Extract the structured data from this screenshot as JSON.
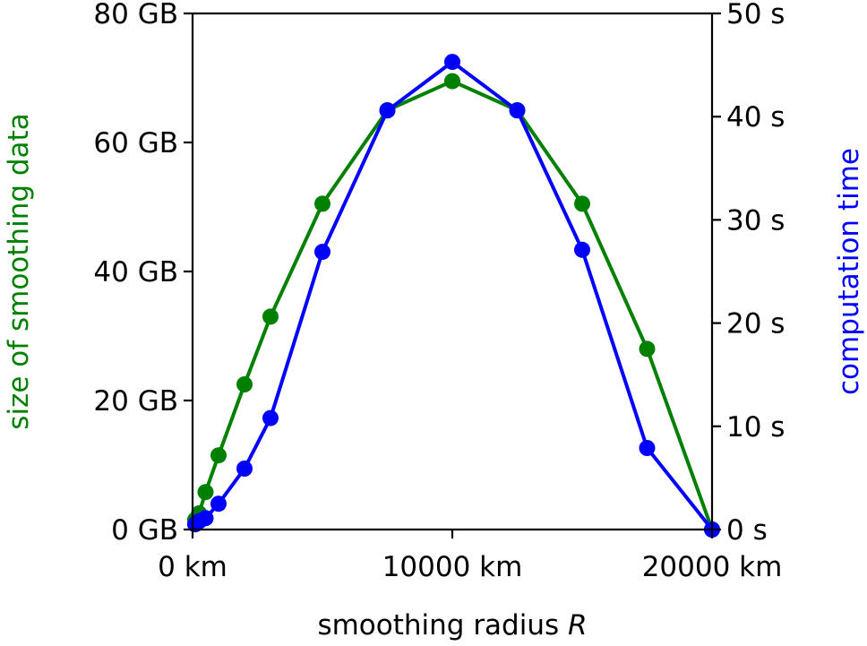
{
  "chart_data": {
    "type": "line",
    "xlabel": "smoothing radius",
    "xlabel_var": "R",
    "ylabel_left": "size of smoothing data",
    "ylabel_right": "computation time",
    "xlim": [
      0,
      20000
    ],
    "ylim_left": [
      0,
      80
    ],
    "ylim_right": [
      0,
      50
    ],
    "x_ticks": [
      0,
      10000,
      20000
    ],
    "x_tick_labels": [
      "0 km",
      "10000 km",
      "20000 km"
    ],
    "y_left_ticks": [
      0,
      20,
      40,
      60,
      80
    ],
    "y_left_tick_labels": [
      "0 GB",
      "20 GB",
      "40 GB",
      "60 GB",
      "80 GB"
    ],
    "y_right_ticks": [
      0,
      10,
      20,
      30,
      40,
      50
    ],
    "y_right_tick_labels": [
      "0 s",
      "10 s",
      "20 s",
      "30 s",
      "40 s",
      "50 s"
    ],
    "grid": false,
    "series": [
      {
        "axis": "left",
        "color": "#008000",
        "x": [
          100,
          250,
          500,
          1000,
          2000,
          3000,
          5000,
          7500,
          10000,
          12500,
          15000,
          17500,
          20000
        ],
        "y": [
          1.5,
          2.5,
          5.8,
          11.5,
          22.5,
          33.0,
          50.5,
          65.0,
          69.5,
          65.0,
          50.5,
          28.0,
          0.0
        ]
      },
      {
        "axis": "right",
        "color": "#0000ff",
        "x": [
          100,
          250,
          500,
          1000,
          2000,
          3000,
          5000,
          7500,
          10000,
          12500,
          15000,
          17500,
          20000
        ],
        "y": [
          0.5,
          0.8,
          1.1,
          2.5,
          5.9,
          10.8,
          26.9,
          40.6,
          45.3,
          40.6,
          27.1,
          7.9,
          0.0
        ]
      }
    ]
  }
}
